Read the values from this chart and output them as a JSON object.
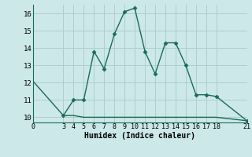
{
  "xlabel": "Humidex (Indice chaleur)",
  "line1_x": [
    3,
    4,
    5,
    6,
    7,
    8,
    9,
    10,
    11,
    12,
    13,
    14,
    15,
    16,
    17,
    18,
    21
  ],
  "line1_y": [
    10.1,
    11.0,
    11.0,
    13.8,
    12.8,
    14.8,
    16.1,
    16.3,
    13.8,
    12.5,
    14.3,
    14.3,
    13.0,
    11.3,
    11.3,
    11.2,
    9.8
  ],
  "line2_x": [
    0,
    3,
    4,
    5,
    6,
    7,
    8,
    9,
    10,
    11,
    12,
    13,
    14,
    15,
    16,
    17,
    18,
    21
  ],
  "line2_y": [
    12.1,
    10.1,
    10.1,
    10.0,
    10.0,
    10.0,
    10.0,
    10.0,
    10.0,
    10.0,
    10.0,
    10.0,
    10.0,
    10.0,
    10.0,
    10.0,
    10.0,
    9.8
  ],
  "line_color": "#1a6b5a",
  "bg_color": "#cce8e8",
  "grid_color": "#b0cece",
  "xlim": [
    0,
    21
  ],
  "ylim": [
    9.7,
    16.5
  ],
  "xticks": [
    0,
    3,
    4,
    5,
    6,
    7,
    8,
    9,
    10,
    11,
    12,
    13,
    14,
    15,
    16,
    17,
    18,
    21
  ],
  "yticks": [
    10,
    11,
    12,
    13,
    14,
    15,
    16
  ],
  "marker": "D",
  "marker_size": 2.5,
  "linewidth": 1.0,
  "xlabel_fontsize": 7,
  "tick_fontsize": 6
}
